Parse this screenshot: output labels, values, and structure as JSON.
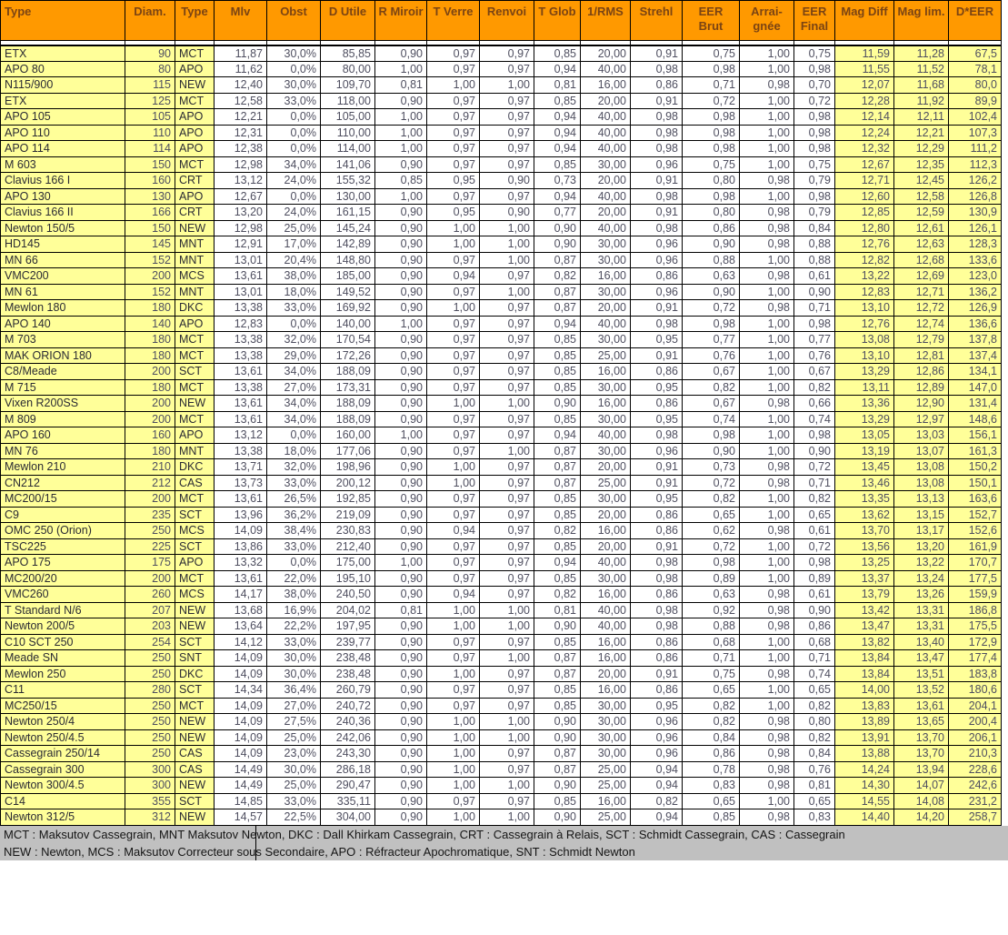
{
  "table": {
    "columns": [
      {
        "id": "type-name",
        "label": [
          "Type"
        ]
      },
      {
        "id": "diam",
        "label": [
          "Diam."
        ]
      },
      {
        "id": "type-code",
        "label": [
          "Type"
        ]
      },
      {
        "id": "mlv",
        "label": [
          "Mlv"
        ]
      },
      {
        "id": "obst",
        "label": [
          "Obst"
        ]
      },
      {
        "id": "d-utile",
        "label": [
          "D Utile"
        ]
      },
      {
        "id": "r-miroir",
        "label": [
          "R Miroir"
        ]
      },
      {
        "id": "t-verre",
        "label": [
          "T Verre"
        ]
      },
      {
        "id": "renvoi",
        "label": [
          "Renvoi"
        ]
      },
      {
        "id": "t-glob",
        "label": [
          "T Glob"
        ]
      },
      {
        "id": "rms",
        "label": [
          "1/RMS"
        ]
      },
      {
        "id": "strehl",
        "label": [
          "Strehl"
        ]
      },
      {
        "id": "eer-brut",
        "label": [
          "EER",
          "Brut"
        ]
      },
      {
        "id": "araignee",
        "label": [
          "Arrai-",
          "gnée"
        ]
      },
      {
        "id": "eer-final",
        "label": [
          "EER",
          "Final"
        ]
      },
      {
        "id": "mag-diff",
        "label": [
          "Mag Diff"
        ]
      },
      {
        "id": "mag-lim",
        "label": [
          "Mag lim."
        ]
      },
      {
        "id": "d-eer",
        "label": [
          "D*EER"
        ]
      }
    ],
    "rows": [
      [
        "ETX",
        "90",
        "MCT",
        "11,87",
        "30,0%",
        "85,85",
        "0,90",
        "0,97",
        "0,97",
        "0,85",
        "20,00",
        "0,91",
        "0,75",
        "1,00",
        "0,75",
        "11,59",
        "11,28",
        "67,5"
      ],
      [
        "APO 80",
        "80",
        "APO",
        "11,62",
        "0,0%",
        "80,00",
        "1,00",
        "0,97",
        "0,97",
        "0,94",
        "40,00",
        "0,98",
        "0,98",
        "1,00",
        "0,98",
        "11,55",
        "11,52",
        "78,1"
      ],
      [
        "N115/900",
        "115",
        "NEW",
        "12,40",
        "30,0%",
        "109,70",
        "0,81",
        "1,00",
        "1,00",
        "0,81",
        "16,00",
        "0,86",
        "0,71",
        "0,98",
        "0,70",
        "12,07",
        "11,68",
        "80,0"
      ],
      [
        "ETX",
        "125",
        "MCT",
        "12,58",
        "33,0%",
        "118,00",
        "0,90",
        "0,97",
        "0,97",
        "0,85",
        "20,00",
        "0,91",
        "0,72",
        "1,00",
        "0,72",
        "12,28",
        "11,92",
        "89,9"
      ],
      [
        "APO 105",
        "105",
        "APO",
        "12,21",
        "0,0%",
        "105,00",
        "1,00",
        "0,97",
        "0,97",
        "0,94",
        "40,00",
        "0,98",
        "0,98",
        "1,00",
        "0,98",
        "12,14",
        "12,11",
        "102,4"
      ],
      [
        "APO 110",
        "110",
        "APO",
        "12,31",
        "0,0%",
        "110,00",
        "1,00",
        "0,97",
        "0,97",
        "0,94",
        "40,00",
        "0,98",
        "0,98",
        "1,00",
        "0,98",
        "12,24",
        "12,21",
        "107,3"
      ],
      [
        "APO 114",
        "114",
        "APO",
        "12,38",
        "0,0%",
        "114,00",
        "1,00",
        "0,97",
        "0,97",
        "0,94",
        "40,00",
        "0,98",
        "0,98",
        "1,00",
        "0,98",
        "12,32",
        "12,29",
        "111,2"
      ],
      [
        "M 603",
        "150",
        "MCT",
        "12,98",
        "34,0%",
        "141,06",
        "0,90",
        "0,97",
        "0,97",
        "0,85",
        "30,00",
        "0,96",
        "0,75",
        "1,00",
        "0,75",
        "12,67",
        "12,35",
        "112,3"
      ],
      [
        "Clavius 166 I",
        "160",
        "CRT",
        "13,12",
        "24,0%",
        "155,32",
        "0,85",
        "0,95",
        "0,90",
        "0,73",
        "20,00",
        "0,91",
        "0,80",
        "0,98",
        "0,79",
        "12,71",
        "12,45",
        "126,2"
      ],
      [
        "APO 130",
        "130",
        "APO",
        "12,67",
        "0,0%",
        "130,00",
        "1,00",
        "0,97",
        "0,97",
        "0,94",
        "40,00",
        "0,98",
        "0,98",
        "1,00",
        "0,98",
        "12,60",
        "12,58",
        "126,8"
      ],
      [
        "Clavius 166 II",
        "166",
        "CRT",
        "13,20",
        "24,0%",
        "161,15",
        "0,90",
        "0,95",
        "0,90",
        "0,77",
        "20,00",
        "0,91",
        "0,80",
        "0,98",
        "0,79",
        "12,85",
        "12,59",
        "130,9"
      ],
      [
        "Newton 150/5",
        "150",
        "NEW",
        "12,98",
        "25,0%",
        "145,24",
        "0,90",
        "1,00",
        "1,00",
        "0,90",
        "40,00",
        "0,98",
        "0,86",
        "0,98",
        "0,84",
        "12,80",
        "12,61",
        "126,1"
      ],
      [
        "HD145",
        "145",
        "MNT",
        "12,91",
        "17,0%",
        "142,89",
        "0,90",
        "1,00",
        "1,00",
        "0,90",
        "30,00",
        "0,96",
        "0,90",
        "0,98",
        "0,88",
        "12,76",
        "12,63",
        "128,3"
      ],
      [
        "MN 66",
        "152",
        "MNT",
        "13,01",
        "20,4%",
        "148,80",
        "0,90",
        "0,97",
        "1,00",
        "0,87",
        "30,00",
        "0,96",
        "0,88",
        "1,00",
        "0,88",
        "12,82",
        "12,68",
        "133,6"
      ],
      [
        "VMC200",
        "200",
        "MCS",
        "13,61",
        "38,0%",
        "185,00",
        "0,90",
        "0,94",
        "0,97",
        "0,82",
        "16,00",
        "0,86",
        "0,63",
        "0,98",
        "0,61",
        "13,22",
        "12,69",
        "123,0"
      ],
      [
        "MN 61",
        "152",
        "MNT",
        "13,01",
        "18,0%",
        "149,52",
        "0,90",
        "0,97",
        "1,00",
        "0,87",
        "30,00",
        "0,96",
        "0,90",
        "1,00",
        "0,90",
        "12,83",
        "12,71",
        "136,2"
      ],
      [
        "Mewlon 180",
        "180",
        "DKC",
        "13,38",
        "33,0%",
        "169,92",
        "0,90",
        "1,00",
        "0,97",
        "0,87",
        "20,00",
        "0,91",
        "0,72",
        "0,98",
        "0,71",
        "13,10",
        "12,72",
        "126,9"
      ],
      [
        "APO 140",
        "140",
        "APO",
        "12,83",
        "0,0%",
        "140,00",
        "1,00",
        "0,97",
        "0,97",
        "0,94",
        "40,00",
        "0,98",
        "0,98",
        "1,00",
        "0,98",
        "12,76",
        "12,74",
        "136,6"
      ],
      [
        "M 703",
        "180",
        "MCT",
        "13,38",
        "32,0%",
        "170,54",
        "0,90",
        "0,97",
        "0,97",
        "0,85",
        "30,00",
        "0,95",
        "0,77",
        "1,00",
        "0,77",
        "13,08",
        "12,79",
        "137,8"
      ],
      [
        "MAK ORION 180",
        "180",
        "MCT",
        "13,38",
        "29,0%",
        "172,26",
        "0,90",
        "0,97",
        "0,97",
        "0,85",
        "25,00",
        "0,91",
        "0,76",
        "1,00",
        "0,76",
        "13,10",
        "12,81",
        "137,4"
      ],
      [
        "C8/Meade",
        "200",
        "SCT",
        "13,61",
        "34,0%",
        "188,09",
        "0,90",
        "0,97",
        "0,97",
        "0,85",
        "16,00",
        "0,86",
        "0,67",
        "1,00",
        "0,67",
        "13,29",
        "12,86",
        "134,1"
      ],
      [
        "M 715",
        "180",
        "MCT",
        "13,38",
        "27,0%",
        "173,31",
        "0,90",
        "0,97",
        "0,97",
        "0,85",
        "30,00",
        "0,95",
        "0,82",
        "1,00",
        "0,82",
        "13,11",
        "12,89",
        "147,0"
      ],
      [
        "Vixen R200SS",
        "200",
        "NEW",
        "13,61",
        "34,0%",
        "188,09",
        "0,90",
        "1,00",
        "1,00",
        "0,90",
        "16,00",
        "0,86",
        "0,67",
        "0,98",
        "0,66",
        "13,36",
        "12,90",
        "131,4"
      ],
      [
        "M 809",
        "200",
        "MCT",
        "13,61",
        "34,0%",
        "188,09",
        "0,90",
        "0,97",
        "0,97",
        "0,85",
        "30,00",
        "0,95",
        "0,74",
        "1,00",
        "0,74",
        "13,29",
        "12,97",
        "148,6"
      ],
      [
        "APO 160",
        "160",
        "APO",
        "13,12",
        "0,0%",
        "160,00",
        "1,00",
        "0,97",
        "0,97",
        "0,94",
        "40,00",
        "0,98",
        "0,98",
        "1,00",
        "0,98",
        "13,05",
        "13,03",
        "156,1"
      ],
      [
        "MN 76",
        "180",
        "MNT",
        "13,38",
        "18,0%",
        "177,06",
        "0,90",
        "0,97",
        "1,00",
        "0,87",
        "30,00",
        "0,96",
        "0,90",
        "1,00",
        "0,90",
        "13,19",
        "13,07",
        "161,3"
      ],
      [
        "Mewlon 210",
        "210",
        "DKC",
        "13,71",
        "32,0%",
        "198,96",
        "0,90",
        "1,00",
        "0,97",
        "0,87",
        "20,00",
        "0,91",
        "0,73",
        "0,98",
        "0,72",
        "13,45",
        "13,08",
        "150,2"
      ],
      [
        "CN212",
        "212",
        "CAS",
        "13,73",
        "33,0%",
        "200,12",
        "0,90",
        "1,00",
        "0,97",
        "0,87",
        "25,00",
        "0,91",
        "0,72",
        "0,98",
        "0,71",
        "13,46",
        "13,08",
        "150,1"
      ],
      [
        "MC200/15",
        "200",
        "MCT",
        "13,61",
        "26,5%",
        "192,85",
        "0,90",
        "0,97",
        "0,97",
        "0,85",
        "30,00",
        "0,95",
        "0,82",
        "1,00",
        "0,82",
        "13,35",
        "13,13",
        "163,6"
      ],
      [
        "C9",
        "235",
        "SCT",
        "13,96",
        "36,2%",
        "219,09",
        "0,90",
        "0,97",
        "0,97",
        "0,85",
        "20,00",
        "0,86",
        "0,65",
        "1,00",
        "0,65",
        "13,62",
        "13,15",
        "152,7"
      ],
      [
        "OMC 250 (Orion)",
        "250",
        "MCS",
        "14,09",
        "38,4%",
        "230,83",
        "0,90",
        "0,94",
        "0,97",
        "0,82",
        "16,00",
        "0,86",
        "0,62",
        "0,98",
        "0,61",
        "13,70",
        "13,17",
        "152,6"
      ],
      [
        "TSC225",
        "225",
        "SCT",
        "13,86",
        "33,0%",
        "212,40",
        "0,90",
        "0,97",
        "0,97",
        "0,85",
        "20,00",
        "0,91",
        "0,72",
        "1,00",
        "0,72",
        "13,56",
        "13,20",
        "161,9"
      ],
      [
        "APO 175",
        "175",
        "APO",
        "13,32",
        "0,0%",
        "175,00",
        "1,00",
        "0,97",
        "0,97",
        "0,94",
        "40,00",
        "0,98",
        "0,98",
        "1,00",
        "0,98",
        "13,25",
        "13,22",
        "170,7"
      ],
      [
        "MC200/20",
        "200",
        "MCT",
        "13,61",
        "22,0%",
        "195,10",
        "0,90",
        "0,97",
        "0,97",
        "0,85",
        "30,00",
        "0,98",
        "0,89",
        "1,00",
        "0,89",
        "13,37",
        "13,24",
        "177,5"
      ],
      [
        "VMC260",
        "260",
        "MCS",
        "14,17",
        "38,0%",
        "240,50",
        "0,90",
        "0,94",
        "0,97",
        "0,82",
        "16,00",
        "0,86",
        "0,63",
        "0,98",
        "0,61",
        "13,79",
        "13,26",
        "159,9"
      ],
      [
        "T Standard N/6",
        "207",
        "NEW",
        "13,68",
        "16,9%",
        "204,02",
        "0,81",
        "1,00",
        "1,00",
        "0,81",
        "40,00",
        "0,98",
        "0,92",
        "0,98",
        "0,90",
        "13,42",
        "13,31",
        "186,8"
      ],
      [
        "Newton 200/5",
        "203",
        "NEW",
        "13,64",
        "22,2%",
        "197,95",
        "0,90",
        "1,00",
        "1,00",
        "0,90",
        "40,00",
        "0,98",
        "0,88",
        "0,98",
        "0,86",
        "13,47",
        "13,31",
        "175,5"
      ],
      [
        "C10 SCT 250",
        "254",
        "SCT",
        "14,12",
        "33,0%",
        "239,77",
        "0,90",
        "0,97",
        "0,97",
        "0,85",
        "16,00",
        "0,86",
        "0,68",
        "1,00",
        "0,68",
        "13,82",
        "13,40",
        "172,9"
      ],
      [
        "Meade SN",
        "250",
        "SNT",
        "14,09",
        "30,0%",
        "238,48",
        "0,90",
        "0,97",
        "1,00",
        "0,87",
        "16,00",
        "0,86",
        "0,71",
        "1,00",
        "0,71",
        "13,84",
        "13,47",
        "177,4"
      ],
      [
        "Mewlon 250",
        "250",
        "DKC",
        "14,09",
        "30,0%",
        "238,48",
        "0,90",
        "1,00",
        "0,97",
        "0,87",
        "20,00",
        "0,91",
        "0,75",
        "0,98",
        "0,74",
        "13,84",
        "13,51",
        "183,8"
      ],
      [
        "C11",
        "280",
        "SCT",
        "14,34",
        "36,4%",
        "260,79",
        "0,90",
        "0,97",
        "0,97",
        "0,85",
        "16,00",
        "0,86",
        "0,65",
        "1,00",
        "0,65",
        "14,00",
        "13,52",
        "180,6"
      ],
      [
        "MC250/15",
        "250",
        "MCT",
        "14,09",
        "27,0%",
        "240,72",
        "0,90",
        "0,97",
        "0,97",
        "0,85",
        "30,00",
        "0,95",
        "0,82",
        "1,00",
        "0,82",
        "13,83",
        "13,61",
        "204,1"
      ],
      [
        "Newton 250/4",
        "250",
        "NEW",
        "14,09",
        "27,5%",
        "240,36",
        "0,90",
        "1,00",
        "1,00",
        "0,90",
        "30,00",
        "0,96",
        "0,82",
        "0,98",
        "0,80",
        "13,89",
        "13,65",
        "200,4"
      ],
      [
        "Newton 250/4.5",
        "250",
        "NEW",
        "14,09",
        "25,0%",
        "242,06",
        "0,90",
        "1,00",
        "1,00",
        "0,90",
        "30,00",
        "0,96",
        "0,84",
        "0,98",
        "0,82",
        "13,91",
        "13,70",
        "206,1"
      ],
      [
        "Cassegrain 250/14",
        "250",
        "CAS",
        "14,09",
        "23,0%",
        "243,30",
        "0,90",
        "1,00",
        "0,97",
        "0,87",
        "30,00",
        "0,96",
        "0,86",
        "0,98",
        "0,84",
        "13,88",
        "13,70",
        "210,3"
      ],
      [
        "Cassegrain 300",
        "300",
        "CAS",
        "14,49",
        "30,0%",
        "286,18",
        "0,90",
        "1,00",
        "0,97",
        "0,87",
        "25,00",
        "0,94",
        "0,78",
        "0,98",
        "0,76",
        "14,24",
        "13,94",
        "228,6"
      ],
      [
        "Newton 300/4.5",
        "300",
        "NEW",
        "14,49",
        "25,0%",
        "290,47",
        "0,90",
        "1,00",
        "1,00",
        "0,90",
        "25,00",
        "0,94",
        "0,83",
        "0,98",
        "0,81",
        "14,30",
        "14,07",
        "242,6"
      ],
      [
        "C14",
        "355",
        "SCT",
        "14,85",
        "33,0%",
        "335,11",
        "0,90",
        "0,97",
        "0,97",
        "0,85",
        "16,00",
        "0,82",
        "0,65",
        "1,00",
        "0,65",
        "14,55",
        "14,08",
        "231,2"
      ],
      [
        "Newton 312/5",
        "312",
        "NEW",
        "14,57",
        "22,5%",
        "304,00",
        "0,90",
        "1,00",
        "1,00",
        "0,90",
        "25,00",
        "0,94",
        "0,85",
        "0,98",
        "0,83",
        "14,40",
        "14,20",
        "258,7"
      ]
    ]
  },
  "legend": {
    "line1": "MCT : Maksutov Cassegrain, MNT Maksutov Newton, DKC : Dall Khirkam Cassegrain, CRT : Cassegrain à Relais, SCT : Schmidt Cassegrain, CAS : Cassegrain",
    "line2": "NEW : Newton, MCS : Maksutov Correcteur sous Secondaire, APO : Réfracteur Apochromatique, SNT : Schmidt Newton"
  },
  "colors": {
    "header_bg": "#ff9900",
    "highlight_bg": "#ffff99",
    "data_bg": "#ffffff",
    "legend_bg": "#c0c0c0",
    "border": "#000000"
  }
}
